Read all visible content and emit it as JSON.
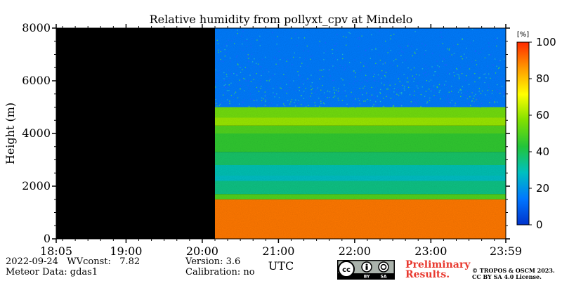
{
  "chart_data": {
    "type": "heatmap",
    "title": "Relative humidity from pollyxt_cpv at Mindelo",
    "xlabel": "UTC",
    "ylabel": "Height (m)",
    "x_ticks": [
      "18:05",
      "19:00",
      "20:00",
      "21:00",
      "22:00",
      "23:00",
      "23:59"
    ],
    "y_ticks": [
      0,
      2000,
      4000,
      6000,
      8000
    ],
    "ylim": [
      0,
      8000
    ],
    "xlim": [
      "18:05",
      "23:59"
    ],
    "no_data_until": "20:10",
    "colorbar": {
      "unit": "[%]",
      "ticks": [
        0,
        20,
        40,
        60,
        80,
        100
      ],
      "range": [
        0,
        100
      ],
      "colormap": [
        "#0033cc",
        "#0077ff",
        "#00c0c0",
        "#22c43a",
        "#80e000",
        "#ffff00",
        "#ff9a00",
        "#ff2a00"
      ]
    },
    "profile": [
      {
        "h0": 0,
        "h1": 1500,
        "rh": 90
      },
      {
        "h0": 1500,
        "h1": 1700,
        "rh": 50
      },
      {
        "h0": 1700,
        "h1": 2200,
        "rh": 35
      },
      {
        "h0": 2200,
        "h1": 2400,
        "rh": 28
      },
      {
        "h0": 2400,
        "h1": 2800,
        "rh": 30
      },
      {
        "h0": 2800,
        "h1": 3300,
        "rh": 38
      },
      {
        "h0": 3300,
        "h1": 4000,
        "rh": 45
      },
      {
        "h0": 4000,
        "h1": 4300,
        "rh": 50
      },
      {
        "h0": 4300,
        "h1": 4600,
        "rh": 60
      },
      {
        "h0": 4600,
        "h1": 5000,
        "rh": 55
      },
      {
        "h0": 5000,
        "h1": 8000,
        "rh": 15
      }
    ]
  },
  "footer": {
    "date_line": "2022-09-24   WVconst:   7.82",
    "meteor_line": "Meteor Data: gdas1",
    "version_line": "Version: 3.6",
    "calibration_line": "Calibration: no",
    "preliminary_1": "Preliminary",
    "preliminary_2": "Results.",
    "copyright_1": "© TROPOS & OSCM 2023.",
    "copyright_2": "CC BY SA 4.0 License."
  },
  "license_badge": {
    "icons": [
      "cc-icon",
      "by-icon",
      "sa-icon"
    ],
    "labels": [
      "BY",
      "SA"
    ]
  }
}
